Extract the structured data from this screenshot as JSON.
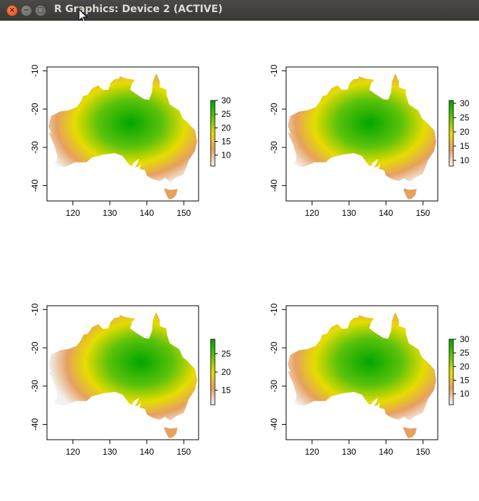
{
  "window": {
    "title": "R Graphics: Device 2 (ACTIVE)",
    "buttons": {
      "close": "×",
      "minimize": "−",
      "maximize": "□"
    }
  },
  "plot_colors": {
    "low": "#f2f2f2",
    "mid_low": "#e6a060",
    "mid": "#e6dc00",
    "high": "#5cc20a",
    "top": "#00a600",
    "frame": "#000000"
  },
  "chart_data": [
    {
      "type": "heatmap",
      "x_ticks": [
        "120",
        "130",
        "140",
        "150"
      ],
      "y_ticks": [
        "-10",
        "-20",
        "-30",
        "-40"
      ],
      "xlim": [
        113,
        154
      ],
      "ylim": [
        -44,
        -9
      ],
      "legend_placement": "right",
      "legend_ticks": [
        "10",
        "15",
        "20",
        "25",
        "30"
      ],
      "legend_range": [
        6,
        30
      ]
    },
    {
      "type": "heatmap",
      "x_ticks": [
        "120",
        "130",
        "140",
        "150"
      ],
      "y_ticks": [
        "-10",
        "-20",
        "-30",
        "-40"
      ],
      "xlim": [
        113,
        154
      ],
      "ylim": [
        -44,
        -9
      ],
      "legend_placement": "right",
      "legend_ticks": [
        "10",
        "15",
        "20",
        "25",
        "30"
      ],
      "legend_range": [
        8,
        31
      ]
    },
    {
      "type": "heatmap",
      "x_ticks": [
        "120",
        "130",
        "140",
        "150"
      ],
      "y_ticks": [
        "-10",
        "-20",
        "-30",
        "-40"
      ],
      "xlim": [
        113,
        154
      ],
      "ylim": [
        -44,
        -9
      ],
      "legend_placement": "right",
      "legend_ticks": [
        "15",
        "20",
        "25"
      ],
      "legend_range": [
        11,
        29
      ]
    },
    {
      "type": "heatmap",
      "x_ticks": [
        "120",
        "130",
        "140",
        "150"
      ],
      "y_ticks": [
        "-10",
        "-20",
        "-30",
        "-40"
      ],
      "xlim": [
        113,
        154
      ],
      "ylim": [
        -44,
        -9
      ],
      "legend_placement": "right",
      "legend_ticks": [
        "10",
        "15",
        "20",
        "25",
        "30"
      ],
      "legend_range": [
        6,
        30
      ]
    }
  ]
}
